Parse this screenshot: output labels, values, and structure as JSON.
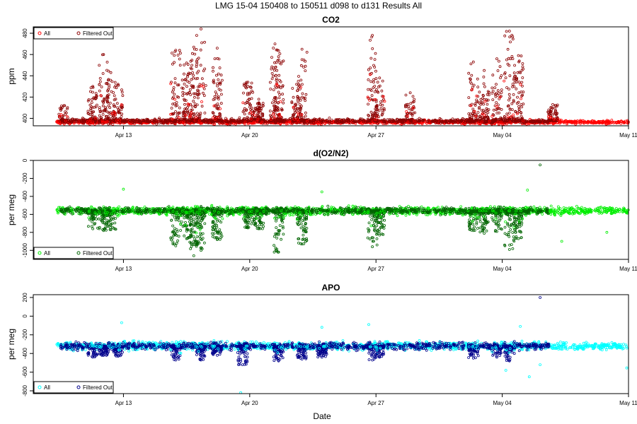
{
  "figure": {
    "title": "LMG   15-04    150408 to 150511    d098 to d131   Results All",
    "xlabel": "Date"
  },
  "chart_data": [
    {
      "type": "scatter",
      "title": "CO2",
      "ylabel": "ppm",
      "xlabel": "Date",
      "x_ticks": [
        "Apr 13",
        "Apr 20",
        "Apr 27",
        "May 04",
        "May 11"
      ],
      "x_tick_values": [
        13,
        20,
        27,
        34,
        41
      ],
      "xlim": [
        8,
        41
      ],
      "y_ticks": [
        400,
        420,
        440,
        460,
        480
      ],
      "ylim": [
        393,
        486
      ],
      "grid": false,
      "legend_position": "top-left",
      "series": [
        {
          "name": "All",
          "color": "#ff0000",
          "baseline": 396.5,
          "spread": 1.2
        },
        {
          "name": "Filtered Out",
          "color": "#8b0000",
          "baseline": 397.5,
          "spread": 1.5
        }
      ],
      "spikes": [
        [
          9.7,
          412
        ],
        [
          11.3,
          430
        ],
        [
          11.9,
          460
        ],
        [
          12.3,
          443
        ],
        [
          12.7,
          432
        ],
        [
          15.9,
          464
        ],
        [
          16.5,
          452
        ],
        [
          16.9,
          467
        ],
        [
          17.3,
          484
        ],
        [
          18.2,
          466
        ],
        [
          19.9,
          434
        ],
        [
          20.5,
          418
        ],
        [
          21.4,
          470
        ],
        [
          21.6,
          458
        ],
        [
          22.9,
          465
        ],
        [
          22.6,
          432
        ],
        [
          26.8,
          478
        ],
        [
          27.2,
          438
        ],
        [
          28.9,
          424
        ],
        [
          32.4,
          453
        ],
        [
          33.0,
          445
        ],
        [
          33.7,
          456
        ],
        [
          34.4,
          482
        ],
        [
          34.9,
          459
        ],
        [
          36.8,
          413
        ]
      ]
    },
    {
      "type": "scatter",
      "title": "d(O2/N2)",
      "ylabel": "per meg",
      "xlabel": "Date",
      "x_ticks": [
        "Apr 13",
        "Apr 20",
        "Apr 27",
        "May 04",
        "May 11"
      ],
      "x_tick_values": [
        13,
        20,
        27,
        34,
        41
      ],
      "xlim": [
        8,
        41
      ],
      "y_ticks": [
        -1000,
        -800,
        -600,
        -400,
        -200,
        0
      ],
      "ylim": [
        -1100,
        0
      ],
      "grid": false,
      "legend_position": "bottom-left",
      "series": [
        {
          "name": "All",
          "color": "#00ee00",
          "baseline": -560,
          "spread": 30
        },
        {
          "name": "Filtered Out",
          "color": "#006400",
          "baseline": -560,
          "spread": 25
        }
      ],
      "spikes": [
        [
          11.3,
          -760
        ],
        [
          11.9,
          -780
        ],
        [
          12.3,
          -770
        ],
        [
          15.9,
          -950
        ],
        [
          16.5,
          -870
        ],
        [
          16.9,
          -1060
        ],
        [
          17.3,
          -1000
        ],
        [
          18.2,
          -880
        ],
        [
          19.9,
          -750
        ],
        [
          20.5,
          -760
        ],
        [
          21.6,
          -1020
        ],
        [
          22.9,
          -930
        ],
        [
          26.8,
          -960
        ],
        [
          27.2,
          -830
        ],
        [
          32.4,
          -780
        ],
        [
          33.0,
          -810
        ],
        [
          33.7,
          -790
        ],
        [
          34.4,
          -990
        ],
        [
          34.9,
          -870
        ]
      ],
      "outliers": [
        [
          36.1,
          -50
        ],
        [
          13.0,
          -320
        ],
        [
          24.0,
          -350
        ],
        [
          35.4,
          -330
        ],
        [
          39.8,
          -800
        ],
        [
          37.3,
          -900
        ]
      ]
    },
    {
      "type": "scatter",
      "title": "APO",
      "ylabel": "per meg",
      "xlabel": "Date",
      "x_ticks": [
        "Apr 13",
        "Apr 20",
        "Apr 27",
        "May 04",
        "May 11"
      ],
      "x_tick_values": [
        13,
        20,
        27,
        34,
        41
      ],
      "xlim": [
        8,
        41
      ],
      "y_ticks": [
        -800,
        -600,
        -400,
        -200,
        0,
        200
      ],
      "ylim": [
        -830,
        230
      ],
      "grid": false,
      "legend_position": "bottom-left",
      "series": [
        {
          "name": "All",
          "color": "#00ffff",
          "baseline": -320,
          "spread": 30
        },
        {
          "name": "Filtered Out",
          "color": "#00008b",
          "baseline": -320,
          "spread": 28
        }
      ],
      "spikes": [
        [
          11.3,
          -440
        ],
        [
          11.9,
          -420
        ],
        [
          12.7,
          -430
        ],
        [
          15.9,
          -470
        ],
        [
          17.3,
          -470
        ],
        [
          18.2,
          -420
        ],
        [
          19.6,
          -520
        ],
        [
          21.6,
          -480
        ],
        [
          22.9,
          -460
        ],
        [
          24.0,
          -440
        ],
        [
          26.8,
          -470
        ],
        [
          27.2,
          -440
        ],
        [
          32.4,
          -450
        ],
        [
          33.7,
          -440
        ],
        [
          34.4,
          -480
        ]
      ],
      "outliers": [
        [
          36.1,
          200
        ],
        [
          19.5,
          -820
        ],
        [
          35.5,
          -650
        ],
        [
          36.1,
          -520
        ],
        [
          34.2,
          -580
        ],
        [
          40.9,
          -555
        ],
        [
          12.9,
          -70
        ],
        [
          24.0,
          -120
        ],
        [
          26.6,
          -90
        ],
        [
          35.0,
          -110
        ]
      ]
    }
  ]
}
